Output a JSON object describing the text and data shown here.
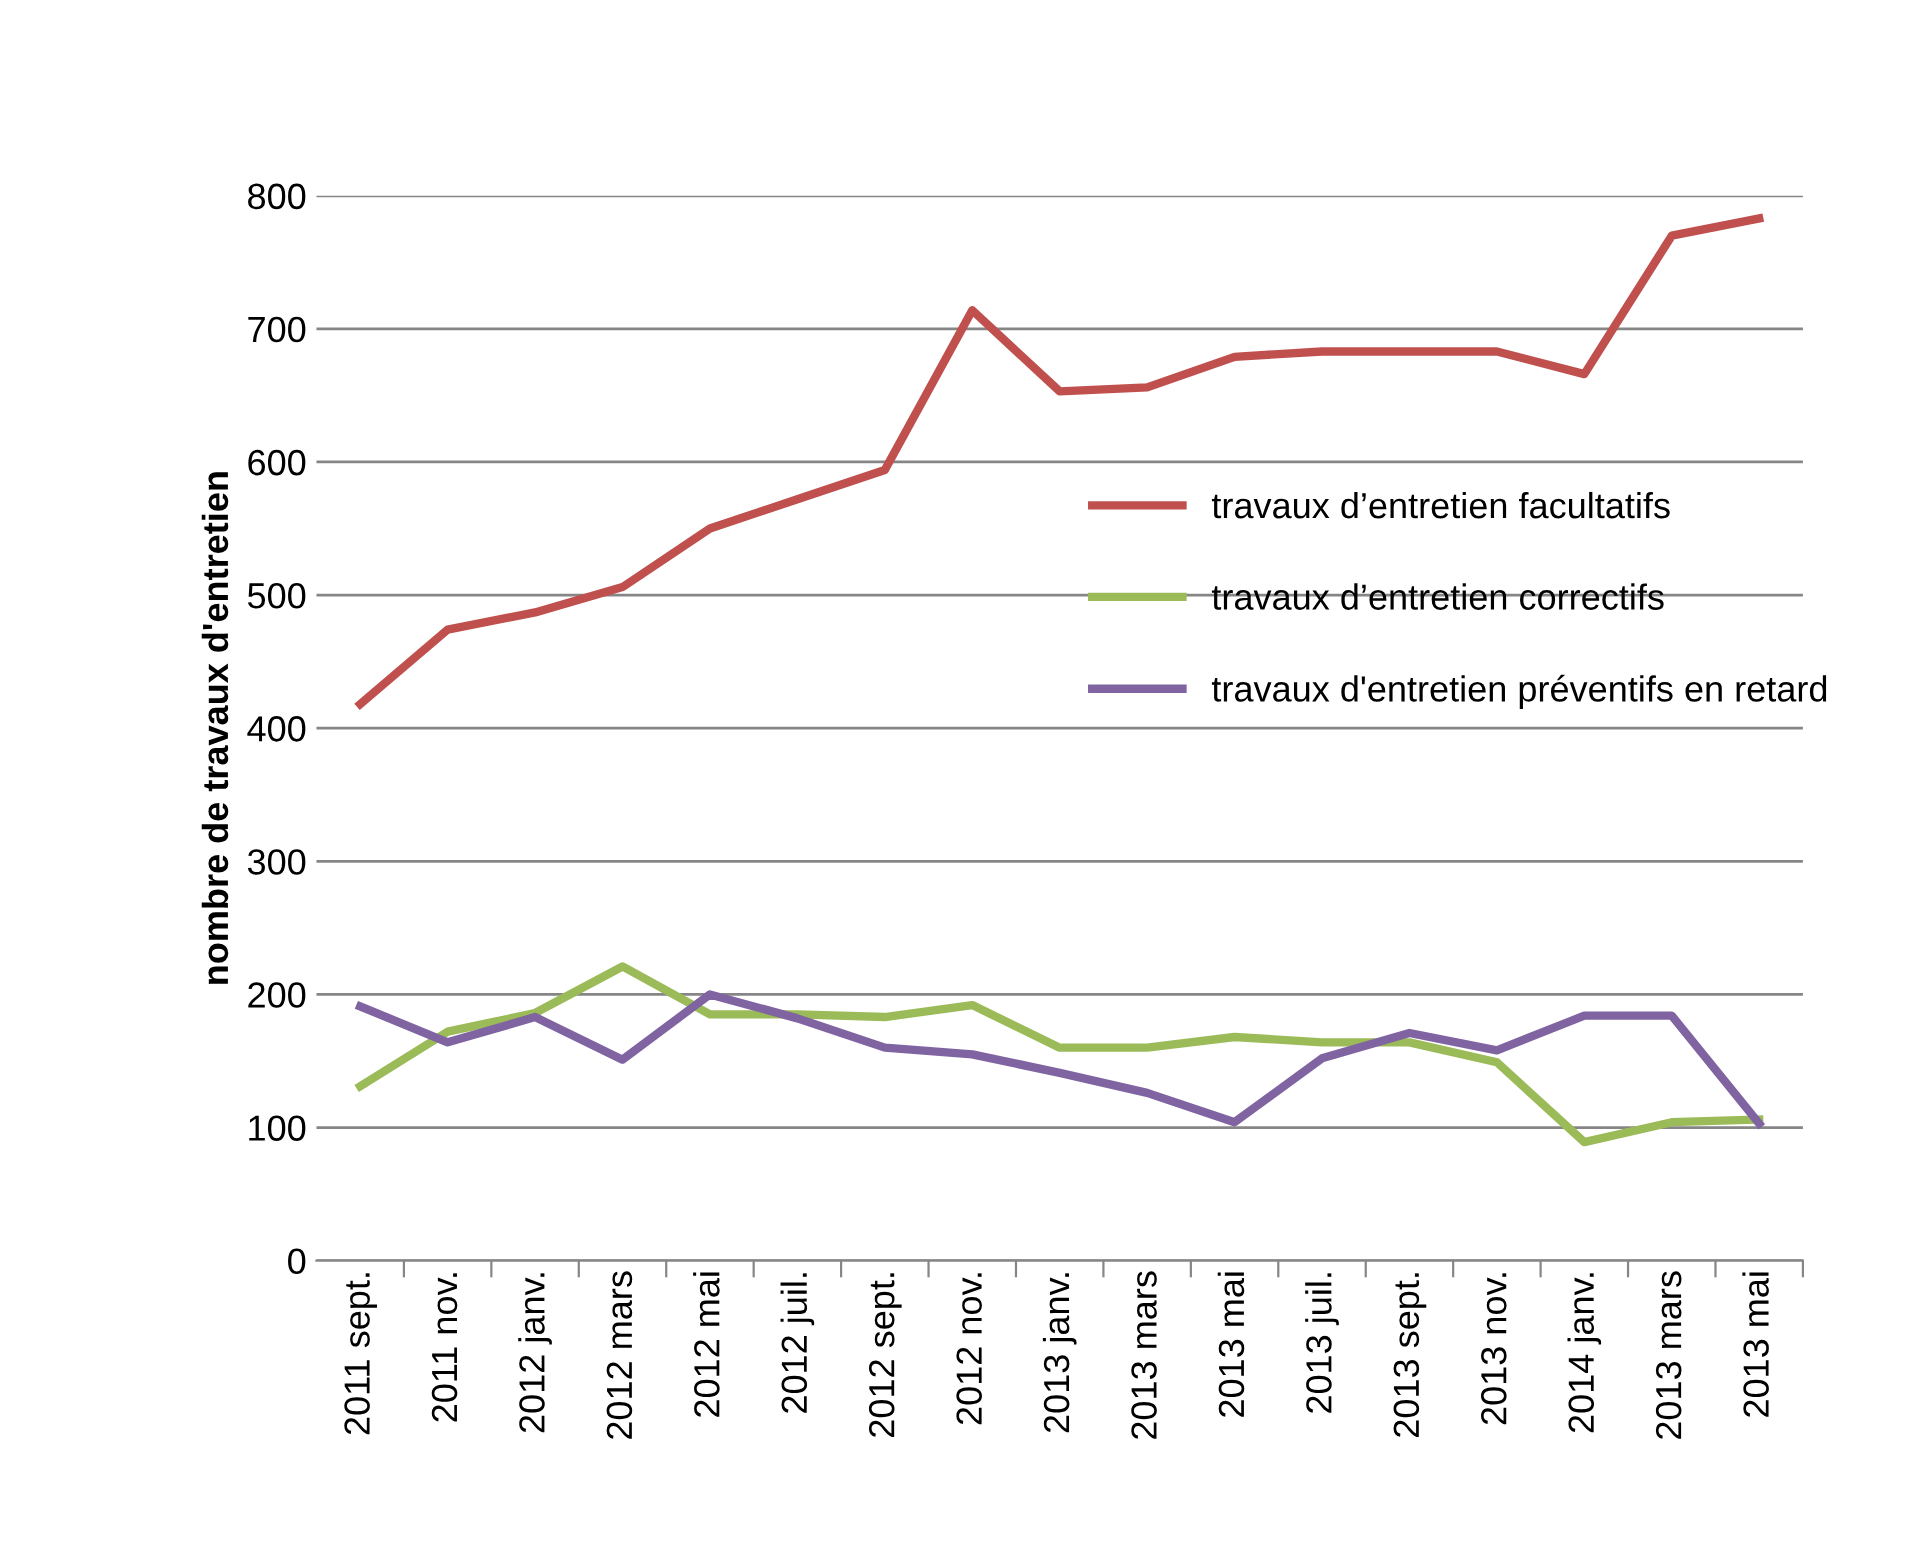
{
  "chart_data": {
    "type": "line",
    "ylabel": "nombre de travaux d'entretien",
    "categories": [
      "2011 sept.",
      "2011 nov.",
      "2012 janv.",
      "2012 mars",
      "2012 mai",
      "2012 juil.",
      "2012 sept.",
      "2012 nov.",
      "2013 janv.",
      "2013 mars",
      "2013 mai",
      "2013 juil.",
      "2013 sept.",
      "2013 nov.",
      "2014 janv.",
      "2013 mars",
      "2013 mai"
    ],
    "series": [
      {
        "name": "travaux d’entretien facultatifs",
        "color": "#c0504d",
        "values": [
          418,
          474,
          487,
          506,
          550,
          572,
          594,
          714,
          653,
          656,
          679,
          683,
          683,
          683,
          666,
          770,
          783
        ]
      },
      {
        "name": "travaux d’entretien correctifs",
        "color": "#9bbb59",
        "values": [
          131,
          172,
          186,
          221,
          185,
          185,
          183,
          192,
          160,
          160,
          168,
          164,
          164,
          149,
          89,
          104,
          106
        ]
      },
      {
        "name": "travaux d'entretien préventifs en retard",
        "color": "#8064a2",
        "values": [
          191,
          164,
          183,
          151,
          200,
          182,
          160,
          155,
          141,
          126,
          104,
          152,
          171,
          158,
          184,
          184,
          103
        ]
      }
    ],
    "ylim": [
      0,
      800
    ],
    "yticks": [
      0,
      100,
      200,
      300,
      400,
      500,
      600,
      700,
      800
    ],
    "grid": "y",
    "legend": "right",
    "marker": "none",
    "line_style": "solid"
  }
}
